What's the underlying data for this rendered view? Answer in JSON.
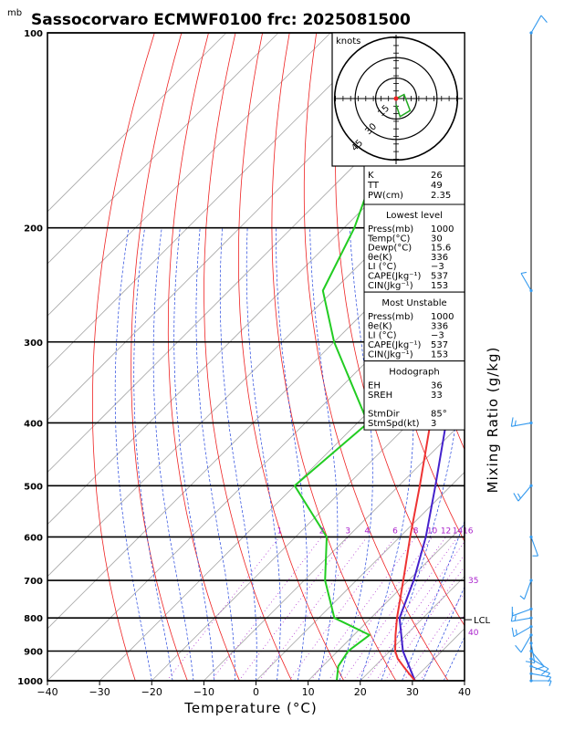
{
  "chart_data": {
    "type": "skew-t",
    "title": "Sassocorvaro ECMWF0100 frc: 2025081500",
    "pressure_unit": "mb",
    "pressure_ticks": [
      100,
      200,
      300,
      400,
      500,
      600,
      700,
      800,
      900,
      1000
    ],
    "x_ticks": [
      -40,
      -30,
      -20,
      -10,
      0,
      10,
      20,
      30,
      40
    ],
    "xlabel": "Temperature (°C)",
    "right_label": "Mixing Ratio (g/kg)",
    "mixing_ratio_labels": [
      "1",
      "2",
      "3",
      "4",
      "6",
      "8",
      "10",
      "12",
      "14",
      "16",
      "18",
      "20",
      "25",
      "30"
    ],
    "side_markers": [
      "35",
      "40"
    ],
    "lcl_label": "LCL",
    "hodograph": {
      "units_label": "knots",
      "ring_labels": [
        "15",
        "30",
        "45"
      ],
      "points": [
        [
          0,
          0
        ],
        [
          4,
          2
        ],
        [
          7,
          -6
        ],
        [
          2,
          -9
        ],
        [
          0,
          -3
        ]
      ]
    },
    "indices": [
      {
        "k": "K",
        "v": "26"
      },
      {
        "k": "TT",
        "v": "49"
      },
      {
        "k": "PW(cm)",
        "v": "2.35"
      }
    ],
    "sections": [
      {
        "title": "Lowest level",
        "rows": [
          {
            "k": "Press(mb)",
            "v": "1000"
          },
          {
            "k": "Temp(°C)",
            "v": "30"
          },
          {
            "k": "Dewp(°C)",
            "v": "15.6"
          },
          {
            "k": "θe(K)",
            "v": "336"
          },
          {
            "k": "LI (°C)",
            "v": "−3"
          },
          {
            "k": "CAPE(Jkg⁻¹)",
            "v": "537"
          },
          {
            "k": "CIN(Jkg⁻¹)",
            "v": "153"
          }
        ]
      },
      {
        "title": "Most Unstable",
        "rows": [
          {
            "k": "Press(mb)",
            "v": "1000"
          },
          {
            "k": "θe(K)",
            "v": "336"
          },
          {
            "k": "LI (°C)",
            "v": "−3"
          },
          {
            "k": "CAPE(Jkg⁻¹)",
            "v": "537"
          },
          {
            "k": "CIN(Jkg⁻¹)",
            "v": "153"
          }
        ]
      },
      {
        "title": "Hodograph",
        "rows": [
          {
            "k": "EH",
            "v": "36"
          },
          {
            "k": "SREH",
            "v": "33"
          },
          {
            "k": "",
            "v": ""
          },
          {
            "k": "StmDir",
            "v": "85°"
          },
          {
            "k": "StmSpd(kt)",
            "v": "3"
          }
        ]
      }
    ],
    "temperature": [
      {
        "p": 1000,
        "t": 30.5
      },
      {
        "p": 975,
        "t": 28
      },
      {
        "p": 950,
        "t": 25.5
      },
      {
        "p": 925,
        "t": 23
      },
      {
        "p": 900,
        "t": 21
      },
      {
        "p": 850,
        "t": 18
      },
      {
        "p": 800,
        "t": 15
      },
      {
        "p": 700,
        "t": 9
      },
      {
        "p": 600,
        "t": 2
      },
      {
        "p": 500,
        "t": -6
      },
      {
        "p": 400,
        "t": -16
      },
      {
        "p": 300,
        "t": -30
      },
      {
        "p": 250,
        "t": -40
      },
      {
        "p": 200,
        "t": -50
      },
      {
        "p": 150,
        "t": -60
      },
      {
        "p": 100,
        "t": -72
      }
    ],
    "dewpoint": [
      {
        "p": 1000,
        "t": 15.5
      },
      {
        "p": 950,
        "t": 13
      },
      {
        "p": 900,
        "t": 12
      },
      {
        "p": 850,
        "t": 13
      },
      {
        "p": 800,
        "t": 3
      },
      {
        "p": 700,
        "t": -6
      },
      {
        "p": 600,
        "t": -14
      },
      {
        "p": 500,
        "t": -30
      },
      {
        "p": 400,
        "t": -28
      },
      {
        "p": 300,
        "t": -50
      },
      {
        "p": 250,
        "t": -62
      },
      {
        "p": 200,
        "t": -68
      },
      {
        "p": 150,
        "t": -78
      },
      {
        "p": 100,
        "t": -92
      }
    ],
    "parcel": [
      {
        "p": 1000,
        "t": 30.5
      },
      {
        "p": 900,
        "t": 22.5
      },
      {
        "p": 800,
        "t": 15.5
      },
      {
        "p": 700,
        "t": 11
      },
      {
        "p": 600,
        "t": 5
      },
      {
        "p": 500,
        "t": -3
      },
      {
        "p": 400,
        "t": -13
      },
      {
        "p": 300,
        "t": -30
      },
      {
        "p": 200,
        "t": -55
      },
      {
        "p": 100,
        "t": -95
      }
    ],
    "lcl_pressure": 805,
    "wind_barbs": [
      {
        "p": 1000,
        "dir": 90,
        "spd": 5
      },
      {
        "p": 975,
        "dir": 100,
        "spd": 5
      },
      {
        "p": 950,
        "dir": 110,
        "spd": 5
      },
      {
        "p": 925,
        "dir": 120,
        "spd": 10
      },
      {
        "p": 900,
        "dir": 140,
        "spd": 10
      },
      {
        "p": 875,
        "dir": 170,
        "spd": 10
      },
      {
        "p": 850,
        "dir": 210,
        "spd": 10
      },
      {
        "p": 825,
        "dir": 240,
        "spd": 15
      },
      {
        "p": 800,
        "dir": 260,
        "spd": 15
      },
      {
        "p": 775,
        "dir": 250,
        "spd": 10
      },
      {
        "p": 700,
        "dir": 200,
        "spd": 5
      },
      {
        "p": 600,
        "dir": 160,
        "spd": 5
      },
      {
        "p": 500,
        "dir": 220,
        "spd": 15
      },
      {
        "p": 400,
        "dir": 260,
        "spd": 15
      },
      {
        "p": 250,
        "dir": 330,
        "spd": 5
      },
      {
        "p": 100,
        "dir": 30,
        "spd": 10
      }
    ],
    "colors": {
      "temperature": "#ee3333",
      "dewpoint": "#22cc22",
      "parcel": "#4422cc",
      "isotherm": "#a8a8a8",
      "dry_adiabat": "#ee2222",
      "moist_adiabat": "#2244dd",
      "mixing_ratio": "#aa22cc",
      "wind": "#3399ee",
      "frame": "#000000"
    }
  }
}
